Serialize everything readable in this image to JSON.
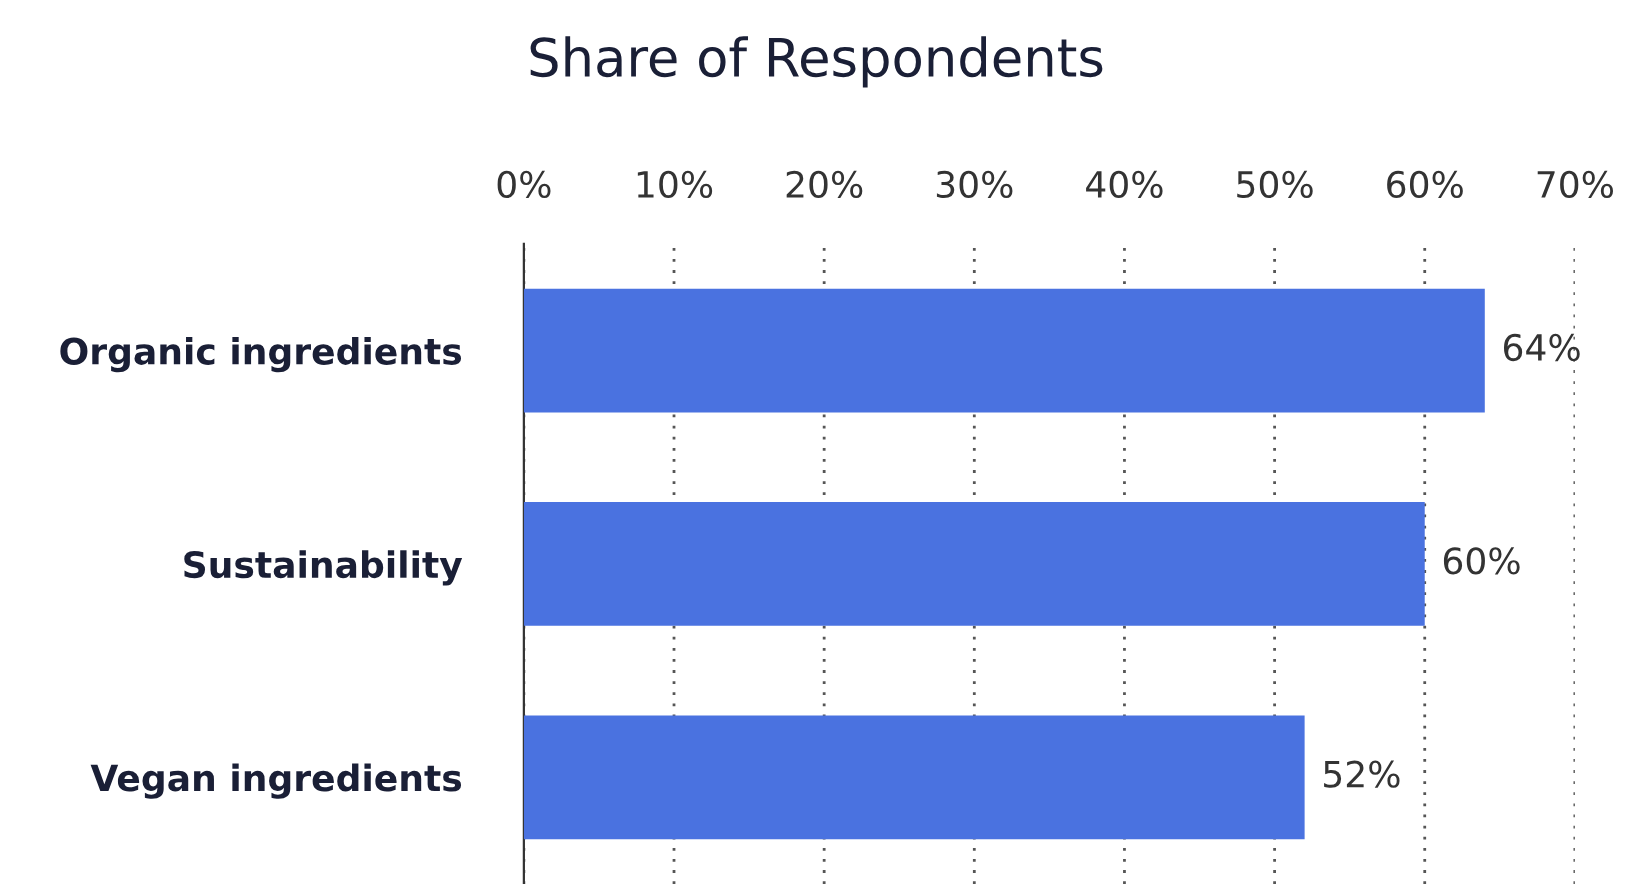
{
  "chart_data": {
    "type": "bar",
    "orientation": "horizontal",
    "title": "Share of Respondents",
    "categories": [
      "Organic ingredients",
      "Sustainability",
      "Vegan ingredients"
    ],
    "values": [
      64,
      60,
      52
    ],
    "value_labels": [
      "64%",
      "60%",
      "52%"
    ],
    "color": "#4a72e0",
    "xlim": [
      0,
      70
    ],
    "xticks": [
      {
        "value": 0,
        "label": "0%"
      },
      {
        "value": 10,
        "label": "10%"
      },
      {
        "value": 20,
        "label": "20%"
      },
      {
        "value": 30,
        "label": "30%"
      },
      {
        "value": 40,
        "label": "40%"
      },
      {
        "value": 50,
        "label": "50%"
      },
      {
        "value": 60,
        "label": "60%"
      },
      {
        "value": 70,
        "label": "70%"
      }
    ],
    "grid": "x",
    "legend": false
  }
}
